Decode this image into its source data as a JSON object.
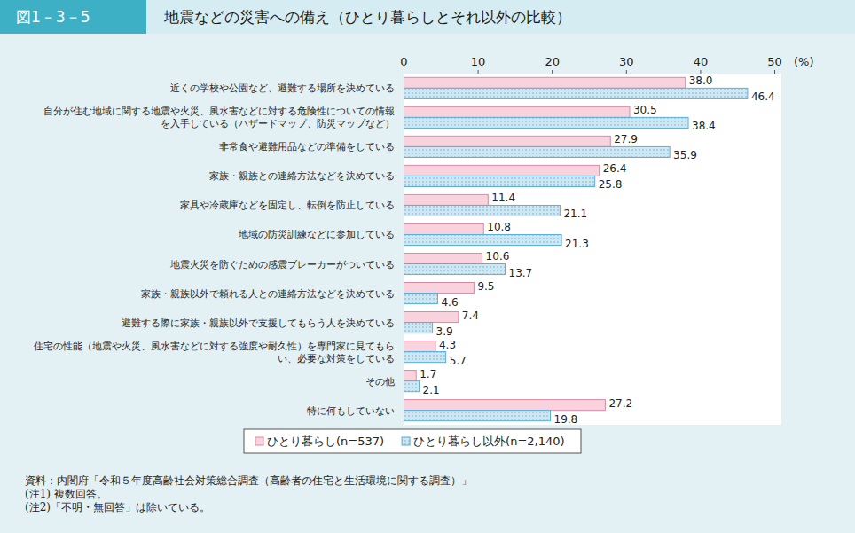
{
  "chart_data": {
    "type": "bar",
    "orientation": "horizontal",
    "subtitle": "図1－3－5",
    "title": "地震などの災害への備え（ひとり暮らしとそれ以外の比較）",
    "xlabel": "(%)",
    "categories": [
      "近くの学校や公園など、避難する場所を決めている",
      "自分が住む地域に関する地震や火災、風水害などに対する危険性についての情報\nを入手している（ハザードマップ、防災マップなど）",
      "非常食や避難用品などの準備をしている",
      "家族・親族との連絡方法などを決めている",
      "家具や冷蔵庫などを固定し、転倒を防止している",
      "地域の防災訓練などに参加している",
      "地震火災を防ぐための感震ブレーカーがついている",
      "家族・親族以外で頼れる人との連絡方法などを決めている",
      "避難する際に家族・親族以外で支援してもらう人を決めている",
      "住宅の性能（地震や火災、風水害などに対する強度や耐久性）を専門家に見てもら\nい、必要な対策をしている",
      "その他",
      "特に何もしていない"
    ],
    "series": [
      {
        "name": "ひとり暮らし(n=537)",
        "color": "#f8d3de",
        "values": [
          38.0,
          30.5,
          27.9,
          26.4,
          11.4,
          10.8,
          10.6,
          9.5,
          7.4,
          4.3,
          1.7,
          27.2
        ],
        "value_labels": [
          "38.0",
          "30.5",
          "27.9",
          "26.4",
          "11.4",
          "10.8",
          "10.6",
          "9.5",
          "7.4",
          "4.3",
          "1.7",
          "27.2"
        ]
      },
      {
        "name": "ひとり暮らし以外(n=2,140)",
        "color": "#cbe8f6",
        "values": [
          46.4,
          38.4,
          35.9,
          25.8,
          21.1,
          21.3,
          13.7,
          4.6,
          3.9,
          5.7,
          2.1,
          19.8
        ],
        "value_labels": [
          "46.4",
          "38.4",
          "35.9",
          "25.8",
          "21.1",
          "21.3",
          "13.7",
          "4.6",
          "3.9",
          "5.7",
          "2.1",
          "19.8"
        ]
      }
    ],
    "xlim": [
      0,
      50
    ],
    "xticks": [
      0,
      10,
      20,
      30,
      40,
      50
    ],
    "grid": false,
    "data_labels": true,
    "legend": "bottom",
    "annotations": [
      "資料：内閣府「令和５年度高齢社会対策総合調査（高齢者の住宅と生活環境に関する調査）」",
      "(注1) 複数回答。",
      "(注2)「不明・無回答」は除いている。"
    ]
  }
}
